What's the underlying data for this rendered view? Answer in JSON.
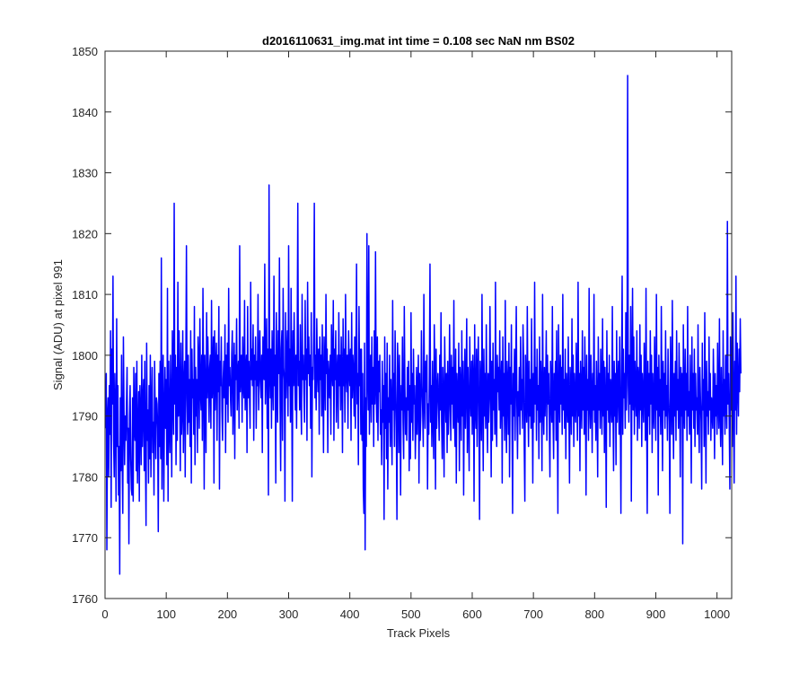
{
  "chart_data": {
    "type": "line",
    "title": "d2016110631_img.mat int time = 0.108 sec  NaN nm BS02",
    "xlabel": "Track Pixels",
    "ylabel": "Signal (ADU) at pixel 991",
    "xlim": [
      0,
      1024
    ],
    "ylim": [
      1760,
      1850
    ],
    "xticks": [
      0,
      100,
      200,
      300,
      400,
      500,
      600,
      700,
      800,
      900,
      1000
    ],
    "yticks": [
      1760,
      1770,
      1780,
      1790,
      1800,
      1810,
      1820,
      1830,
      1840,
      1850
    ],
    "grid": false,
    "box": true,
    "series": [
      {
        "color": "#0000ff",
        "x_start": 1,
        "x_step": 1,
        "values": [
          1788,
          1797,
          1768,
          1790,
          1793,
          1780,
          1795,
          1787,
          1804,
          1775,
          1801,
          1792,
          1813,
          1786,
          1780,
          1797,
          1790,
          1776,
          1806,
          1785,
          1795,
          1777,
          1785,
          1764,
          1793,
          1781,
          1800,
          1784,
          1774,
          1803,
          1791,
          1782,
          1790,
          1786,
          1792,
          1798,
          1779,
          1788,
          1769,
          1790,
          1795,
          1783,
          1778,
          1777,
          1793,
          1776,
          1798,
          1788,
          1786,
          1797,
          1781,
          1799,
          1779,
          1787,
          1794,
          1776,
          1795,
          1790,
          1782,
          1800,
          1785,
          1792,
          1796,
          1781,
          1799,
          1784,
          1772,
          1802,
          1786,
          1791,
          1779,
          1795,
          1783,
          1800,
          1780,
          1791,
          1798,
          1784,
          1789,
          1777,
          1799,
          1790,
          1783,
          1793,
          1792,
          1788,
          1771,
          1797,
          1785,
          1799,
          1783,
          1816,
          1778,
          1793,
          1800,
          1776,
          1790,
          1798,
          1788,
          1796,
          1782,
          1811,
          1776,
          1799,
          1789,
          1784,
          1800,
          1791,
          1780,
          1804,
          1793,
          1787,
          1825,
          1792,
          1800,
          1782,
          1798,
          1786,
          1812,
          1790,
          1804,
          1794,
          1781,
          1802,
          1787,
          1791,
          1804,
          1784,
          1795,
          1799,
          1780,
          1798,
          1818,
          1793,
          1787,
          1800,
          1789,
          1796,
          1785,
          1804,
          1779,
          1801,
          1793,
          1796,
          1787,
          1808,
          1782,
          1798,
          1790,
          1796,
          1784,
          1803,
          1799,
          1788,
          1806,
          1794,
          1791,
          1800,
          1786,
          1811,
          1797,
          1778,
          1800,
          1794,
          1784,
          1807,
          1793,
          1803,
          1796,
          1789,
          1798,
          1800,
          1788,
          1809,
          1793,
          1797,
          1803,
          1779,
          1804,
          1791,
          1798,
          1802,
          1786,
          1800,
          1794,
          1808,
          1778,
          1799,
          1795,
          1803,
          1791,
          1786,
          1796,
          1799,
          1793,
          1805,
          1784,
          1800,
          1792,
          1802,
          1789,
          1811,
          1795,
          1798,
          1793,
          1790,
          1800,
          1804,
          1787,
          1795,
          1802,
          1783,
          1800,
          1796,
          1806,
          1791,
          1797,
          1799,
          1788,
          1818,
          1794,
          1797,
          1800,
          1789,
          1803,
          1795,
          1793,
          1809,
          1791,
          1797,
          1800,
          1784,
          1808,
          1793,
          1799,
          1794,
          1788,
          1812,
          1796,
          1801,
          1795,
          1805,
          1786,
          1800,
          1796,
          1803,
          1788,
          1799,
          1795,
          1810,
          1791,
          1797,
          1804,
          1796,
          1793,
          1800,
          1784,
          1803,
          1797,
          1796,
          1815,
          1792,
          1799,
          1806,
          1788,
          1801,
          1777,
          1828,
          1798,
          1793,
          1801,
          1788,
          1804,
          1796,
          1791,
          1813,
          1795,
          1800,
          1779,
          1807,
          1795,
          1789,
          1804,
          1797,
          1816,
          1792,
          1781,
          1801,
          1804,
          1786,
          1811,
          1798,
          1796,
          1776,
          1807,
          1793,
          1800,
          1804,
          1790,
          1818,
          1795,
          1801,
          1789,
          1811,
          1797,
          1776,
          1804,
          1795,
          1807,
          1797,
          1791,
          1800,
          1788,
          1802,
          1825,
          1795,
          1799,
          1791,
          1805,
          1793,
          1787,
          1810,
          1796,
          1800,
          1794,
          1789,
          1809,
          1796,
          1801,
          1786,
          1812,
          1797,
          1803,
          1795,
          1800,
          1788,
          1807,
          1780,
          1798,
          1796,
          1804,
          1825,
          1793,
          1800,
          1791,
          1806,
          1798,
          1794,
          1801,
          1787,
          1803,
          1796,
          1800,
          1790,
          1805,
          1795,
          1784,
          1803,
          1798,
          1791,
          1810,
          1797,
          1801,
          1784,
          1799,
          1796,
          1793,
          1800,
          1787,
          1805,
          1798,
          1795,
          1809,
          1786,
          1801,
          1796,
          1804,
          1789,
          1797,
          1800,
          1788,
          1807,
          1795,
          1800,
          1791,
          1803,
          1797,
          1784,
          1806,
          1795,
          1801,
          1789,
          1810,
          1797,
          1794,
          1800,
          1788,
          1804,
          1798,
          1795,
          1801,
          1786,
          1807,
          1793,
          1800,
          1797,
          1790,
          1803,
          1788,
          1799,
          1815,
          1792,
          1797,
          1782,
          1808,
          1795,
          1801,
          1787,
          1801,
          1786,
          1797,
          1778,
          1774,
          1802,
          1768,
          1793,
          1785,
          1820,
          1797,
          1791,
          1818,
          1787,
          1796,
          1800,
          1789,
          1803,
          1792,
          1798,
          1785,
          1804,
          1792,
          1817,
          1795,
          1789,
          1803,
          1786,
          1799,
          1794,
          1800,
          1787,
          1791,
          1782,
          1799,
          1789,
          1795,
          1773,
          1803,
          1788,
          1797,
          1783,
          1802,
          1778,
          1793,
          1789,
          1800,
          1785,
          1796,
          1790,
          1782,
          1809,
          1791,
          1797,
          1785,
          1804,
          1795,
          1788,
          1773,
          1802,
          1796,
          1784,
          1800,
          1791,
          1777,
          1795,
          1791,
          1803,
          1789,
          1783,
          1808,
          1795,
          1787,
          1793,
          1786,
          1798,
          1791,
          1799,
          1781,
          1795,
          1783,
          1807,
          1789,
          1797,
          1786,
          1801,
          1792,
          1795,
          1783,
          1789,
          1798,
          1787,
          1794,
          1800,
          1779,
          1797,
          1786,
          1790,
          1804,
          1795,
          1791,
          1785,
          1810,
          1793,
          1788,
          1799,
          1794,
          1800,
          1778,
          1792,
          1787,
          1797,
          1815,
          1789,
          1795,
          1785,
          1799,
          1790,
          1783,
          1805,
          1796,
          1778,
          1801,
          1788,
          1794,
          1797,
          1792,
          1786,
          1800,
          1791,
          1807,
          1789,
          1783,
          1798,
          1793,
          1780,
          1803,
          1795,
          1789,
          1797,
          1784,
          1799,
          1787,
          1791,
          1805,
          1794,
          1786,
          1800,
          1792,
          1798,
          1788,
          1809,
          1790,
          1785,
          1801,
          1779,
          1797,
          1793,
          1789,
          1802,
          1781,
          1798,
          1795,
          1786,
          1804,
          1790,
          1799,
          1777,
          1793,
          1801,
          1788,
          1795,
          1806,
          1784,
          1798,
          1791,
          1781,
          1803,
          1794,
          1790,
          1799,
          1787,
          1800,
          1796,
          1776,
          1805,
          1792,
          1788,
          1801,
          1785,
          1797,
          1803,
          1790,
          1773,
          1799,
          1794,
          1786,
          1810,
          1793,
          1781,
          1801,
          1790,
          1797,
          1788,
          1805,
          1792,
          1784,
          1797,
          1789,
          1793,
          1808,
          1795,
          1780,
          1799,
          1786,
          1802,
          1791,
          1796,
          1787,
          1812,
          1790,
          1785,
          1800,
          1794,
          1798,
          1791,
          1804,
          1788,
          1795,
          1799,
          1779,
          1803,
          1790,
          1797,
          1786,
          1809,
          1791,
          1784,
          1799,
          1795,
          1787,
          1802,
          1780,
          1798,
          1792,
          1805,
          1789,
          1774,
          1797,
          1790,
          1801,
          1786,
          1796,
          1808,
          1792,
          1783,
          1794,
          1790,
          1798,
          1787,
          1803,
          1791,
          1796,
          1788,
          1805,
          1799,
          1785,
          1776,
          1800,
          1795,
          1789,
          1808,
          1793,
          1785,
          1799,
          1790,
          1796,
          1788,
          1806,
          1793,
          1779,
          1797,
          1789,
          1812,
          1792,
          1798,
          1786,
          1801,
          1791,
          1795,
          1783,
          1803,
          1789,
          1799,
          1794,
          1781,
          1810,
          1792,
          1787,
          1798,
          1790,
          1795,
          1804,
          1786,
          1800,
          1792,
          1797,
          1788,
          1780,
          1799,
          1794,
          1789,
          1808,
          1790,
          1783,
          1797,
          1791,
          1799,
          1786,
          1804,
          1791,
          1774,
          1805,
          1795,
          1789,
          1800,
          1792,
          1798,
          1787,
          1810,
          1791,
          1796,
          1788,
          1801,
          1783,
          1797,
          1793,
          1789,
          1803,
          1791,
          1779,
          1798,
          1794,
          1787,
          1806,
          1790,
          1800,
          1785,
          1797,
          1792,
          1789,
          1802,
          1794,
          1786,
          1812,
          1790,
          1797,
          1781,
          1799,
          1793,
          1788,
          1804,
          1791,
          1798,
          1787,
          1803,
          1793,
          1777,
          1800,
          1791,
          1796,
          1786,
          1811,
          1792,
          1788,
          1800,
          1794,
          1784,
          1797,
          1791,
          1810,
          1789,
          1795,
          1786,
          1799,
          1792,
          1780,
          1803,
          1791,
          1797,
          1788,
          1801,
          1794,
          1787,
          1806,
          1790,
          1799,
          1784,
          1798,
          1792,
          1775,
          1804,
          1791,
          1797,
          1789,
          1800,
          1785,
          1796,
          1793,
          1789,
          1808,
          1792,
          1781,
          1799,
          1790,
          1797,
          1782,
          1804,
          1789,
          1795,
          1799,
          1787,
          1803,
          1791,
          1774,
          1797,
          1813,
          1787,
          1801,
          1793,
          1797,
          1788,
          1807,
          1791,
          1799,
          1846,
          1795,
          1789,
          1800,
          1792,
          1808,
          1776,
          1797,
          1811,
          1791,
          1803,
          1787,
          1799,
          1794,
          1790,
          1804,
          1786,
          1798,
          1796,
          1788,
          1805,
          1791,
          1800,
          1785,
          1797,
          1793,
          1789,
          1802,
          1795,
          1786,
          1811,
          1791,
          1774,
          1799,
          1790,
          1797,
          1787,
          1804,
          1792,
          1800,
          1784,
          1797,
          1791,
          1788,
          1803,
          1795,
          1786,
          1810,
          1791,
          1798,
          1777,
          1800,
          1790,
          1796,
          1787,
          1808,
          1793,
          1781,
          1799,
          1791,
          1797,
          1788,
          1804,
          1790,
          1795,
          1786,
          1801,
          1793,
          1789,
          1774,
          1803,
          1795,
          1787,
          1809,
          1792,
          1783,
          1797,
          1790,
          1799,
          1786,
          1804,
          1791,
          1796,
          1788,
          1802,
          1794,
          1780,
          1798,
          1790,
          1797,
          1769,
          1805,
          1792,
          1788,
          1801,
          1791,
          1797,
          1786,
          1808,
          1790,
          1794,
          1787,
          1800,
          1793,
          1779,
          1803,
          1791,
          1797,
          1788,
          1801,
          1785,
          1797,
          1791,
          1793,
          1787,
          1805,
          1790,
          1784,
          1798,
          1793,
          1789,
          1778,
          1802,
          1791,
          1796,
          1785,
          1807,
          1792,
          1779,
          1799,
          1790,
          1794,
          1787,
          1803,
          1791,
          1797,
          1786,
          1793,
          1791,
          1788,
          1801,
          1794,
          1783,
          1797,
          1790,
          1795,
          1787,
          1802,
          1792,
          1788,
          1806,
          1791,
          1785,
          1798,
          1791,
          1782,
          1804,
          1790,
          1796,
          1787,
          1800,
          1793,
          1788,
          1822,
          1792,
          1797,
          1789,
          1778,
          1803,
          1791,
          1796,
          1785,
          1807,
          1793,
          1779,
          1799,
          1791,
          1813,
          1787,
          1802,
          1795,
          1790,
          1801,
          1794,
          1806,
          1797
        ]
      }
    ]
  }
}
